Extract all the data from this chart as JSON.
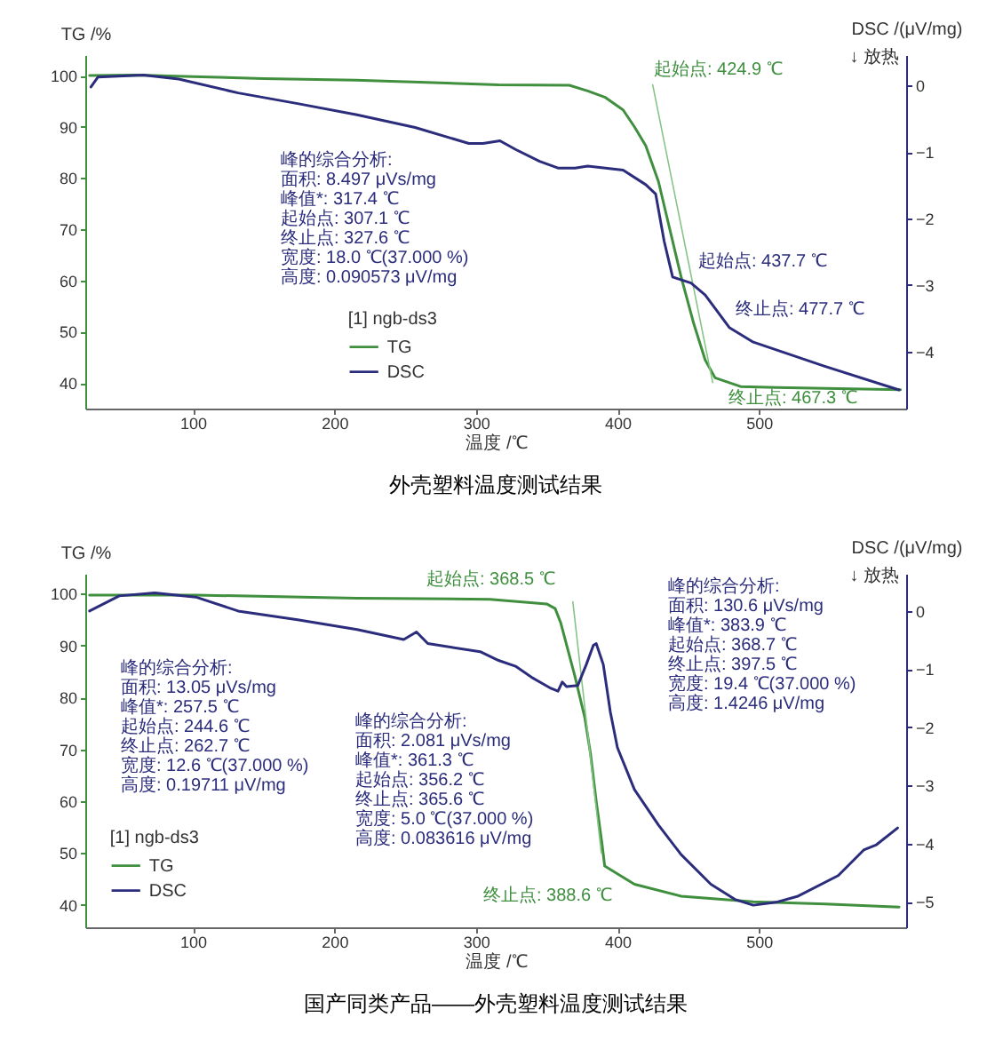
{
  "chart_data": [
    {
      "type": "line",
      "title": "外壳塑料温度测试结果",
      "xlabel": "温度 /℃",
      "ylabel": "TG /%",
      "y2label": "DSC /(μV/mg)",
      "legend_title": "[1] ngb-ds3",
      "legend": "bottom",
      "grid": false,
      "xlim": [
        24,
        604
      ],
      "xticks": [
        100,
        200,
        300,
        400,
        500
      ],
      "ylim": [
        35,
        104
      ],
      "yticks": [
        40,
        50,
        60,
        70,
        80,
        90,
        100
      ],
      "y2lim": [
        -4.86,
        0.46
      ],
      "y2ticks": [
        -4,
        -3,
        -2,
        -1,
        0
      ],
      "series": [
        {
          "name": "TG",
          "color": "#3f8f3f",
          "x": [
            27,
            60,
            100,
            150,
            215,
            260,
            316,
            366,
            379,
            391,
            404,
            412,
            420,
            429,
            437,
            445,
            454,
            462,
            469,
            487,
            512,
            600
          ],
          "values": [
            100,
            100.1,
            99.8,
            99.4,
            99.1,
            98.7,
            98.2,
            98.1,
            97.0,
            95.8,
            93.3,
            90.0,
            86.3,
            79.3,
            70.0,
            60.7,
            51.5,
            44.5,
            41.0,
            39.3,
            39.1,
            38.7
          ]
        },
        {
          "name": "DSC",
          "color": "#2b2d7c",
          "axis": "y2",
          "x": [
            28,
            33,
            65,
            90,
            132,
            174,
            216,
            257,
            295,
            305,
            317,
            328,
            345,
            358,
            370,
            379,
            404,
            420,
            427,
            433,
            439,
            452,
            462,
            479,
            496,
            546,
            599
          ],
          "values": [
            -0.02,
            0.13,
            0.16,
            0.1,
            -0.11,
            -0.27,
            -0.44,
            -0.63,
            -0.87,
            -0.87,
            -0.83,
            -0.96,
            -1.14,
            -1.24,
            -1.24,
            -1.21,
            -1.27,
            -1.49,
            -1.63,
            -2.34,
            -2.88,
            -2.97,
            -3.15,
            -3.64,
            -3.86,
            -4.22,
            -4.58
          ]
        },
        {
          "color": "#86c486",
          "x": [
            424.9,
            467.3
          ],
          "values": [
            98.2,
            40.1
          ]
        }
      ],
      "annotations": [
        "峰的综合分析:\n面积: 8.497 μVs/mg\n峰值*: 317.4 ℃\n起始点: 307.1 ℃\n终止点: 327.6 ℃\n宽度: 18.0 ℃(37.000 %)\n高度: 0.090573 μV/mg",
        "起始点: 424.9 ℃",
        "起始点: 437.7 ℃",
        "终止点: 477.7 ℃",
        "终止点: 467.3 ℃",
        "↓ 放热"
      ]
    },
    {
      "type": "line",
      "title": "国产同类产品——外壳塑料温度测试结果",
      "xlabel": "温度 /℃",
      "ylabel": "TG /%",
      "y2label": "DSC /(μV/mg)",
      "legend_title": "[1] ngb-ds3",
      "legend": "bottom left",
      "grid": false,
      "xlim": [
        24,
        604
      ],
      "xticks": [
        100,
        200,
        300,
        400,
        500
      ],
      "ylim": [
        35.7,
        103.8
      ],
      "yticks": [
        40,
        50,
        60,
        70,
        80,
        90,
        100
      ],
      "y2lim": [
        -5.44,
        0.64
      ],
      "y2ticks": [
        -5,
        -4,
        -3,
        -2,
        -1,
        0
      ],
      "series": [
        {
          "name": "TG",
          "color": "#3f8f3f",
          "x": [
            27,
            102,
            216,
            310,
            350,
            356,
            360,
            370,
            377,
            381,
            385,
            389,
            391,
            412,
            445,
            496,
            547,
            599
          ],
          "values": [
            99.7,
            99.7,
            99.1,
            98.9,
            98.0,
            97.1,
            94.3,
            84.0,
            76.0,
            69.1,
            60.0,
            52.0,
            47.5,
            44.0,
            41.7,
            40.6,
            40.2,
            39.6
          ]
        },
        {
          "name": "DSC",
          "color": "#2b2d7c",
          "axis": "y2",
          "x": [
            27,
            48,
            73,
            102,
            132,
            174,
            216,
            249,
            258,
            266,
            303,
            316,
            328,
            340,
            353,
            358,
            361,
            364,
            372,
            378,
            383,
            385,
            390,
            395,
            400,
            412,
            429,
            445,
            466,
            483,
            496,
            512,
            527,
            556,
            574,
            583,
            598
          ],
          "values": [
            0.0,
            0.26,
            0.31,
            0.24,
            0.0,
            -0.15,
            -0.32,
            -0.49,
            -0.36,
            -0.56,
            -0.7,
            -0.85,
            -0.95,
            -1.15,
            -1.33,
            -1.38,
            -1.22,
            -1.3,
            -1.28,
            -0.92,
            -0.59,
            -0.56,
            -0.92,
            -1.74,
            -2.35,
            -3.07,
            -3.68,
            -4.19,
            -4.7,
            -4.96,
            -5.06,
            -5.01,
            -4.91,
            -4.55,
            -4.11,
            -4.02,
            -3.73
          ]
        },
        {
          "color": "#86c486",
          "x": [
            368.5,
            388.6
          ],
          "values": [
            98.4,
            50.0
          ]
        }
      ],
      "annotations": [
        "峰的综合分析:\n面积: 13.05 μVs/mg\n峰值*: 257.5 ℃\n起始点: 244.6 ℃\n终止点: 262.7 ℃\n宽度: 12.6 ℃(37.000 %)\n高度: 0.19711 μV/mg",
        "峰的综合分析:\n面积: 2.081 μVs/mg\n峰值*: 361.3 ℃\n起始点: 356.2 ℃\n终止点: 365.6 ℃\n宽度: 5.0 ℃(37.000 %)\n高度: 0.083616 μV/mg",
        "峰的综合分析:\n面积: 130.6 μVs/mg\n峰值*: 383.9 ℃\n起始点: 368.7 ℃\n终止点: 397.5 ℃\n宽度: 19.4 ℃(37.000 %)\n高度: 1.4246 μV/mg",
        "起始点: 368.5 ℃",
        "终止点: 388.6 ℃",
        "↓ 放热"
      ]
    }
  ]
}
